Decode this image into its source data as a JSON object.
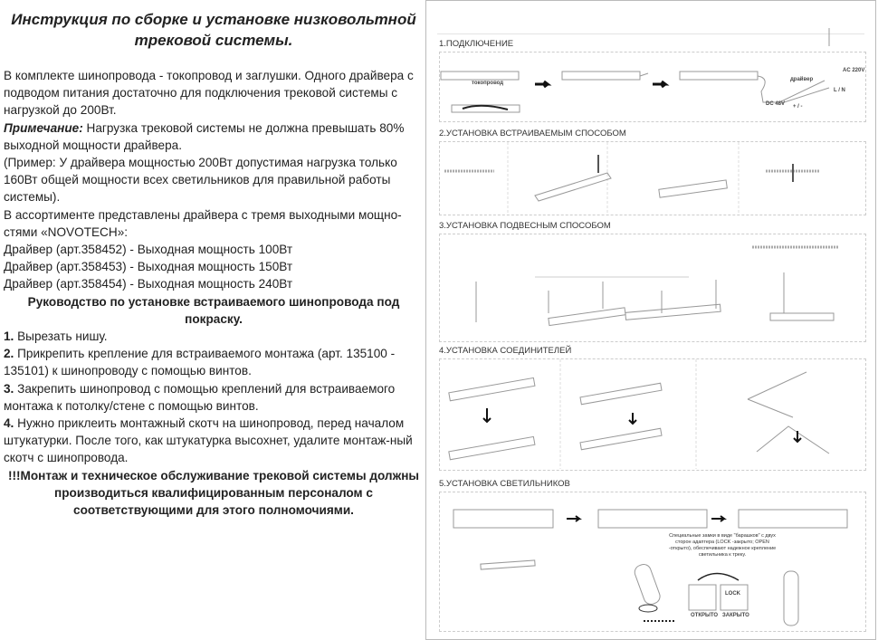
{
  "left": {
    "title": "Инструкция по сборке и установке низковольтной трековой системы.",
    "intro": "В комплекте шинопровода - токопровод и заглушки. Одного драйвера с подводом питания достаточно для подключения трековой системы с нагрузкой до 200Вт.",
    "note_label": "Примечание:",
    "note_text": " Нагрузка трековой системы не должна превышать 80% выходной мощности драйвера.",
    "example": "(Пример: У драйвера мощностью 200Вт допустимая нагрузка только 160Вт общей мощности всех светильников для правильной работы системы).",
    "assortment": "В ассортименте представлены драйвера с тремя выходными мощно-стями «NOVOTECH»:",
    "drivers": [
      "Драйвер (арт.358452) - Выходная мощность 100Вт",
      "Драйвер (арт.358453) - Выходная мощность 150Вт",
      "Драйвер (арт.358454) - Выходная мощность 240Вт"
    ],
    "guide_title": "Руководство по установке встраиваемого шинопровода под покраску.",
    "steps": [
      {
        "num": "1.",
        "text": " Вырезать нишу."
      },
      {
        "num": "2.",
        "text": " Прикрепить крепление для встраиваемого монтажа (арт. 135100 - 135101) к шинопроводу с помощью винтов."
      },
      {
        "num": "3.",
        "text": " Закрепить шинопровод с помощью креплений для встраиваемого монтажа к потолку/стене с помощью винтов."
      },
      {
        "num": "4.",
        "text": " Нужно приклеить монтажный скотч на шинопровод, перед началом штукатурки. После того, как штукатурка высохнет, удалите монтаж-ный скотч с шинопровода."
      }
    ],
    "warning": "!!!Монтаж и техническое обслуживание трековой системы должны производиться квалифицированным персоналом с соответствующими для этого полномочиями."
  },
  "right": {
    "sections": [
      "1.ПОДКЛЮЧЕНИЕ",
      "2.УСТАНОВКА ВСТРАИВАЕМЫМ СПОСОБОМ",
      "3.УСТАНОВКА ПОДВЕСНЫМ СПОСОБОМ",
      "4.УСТАНОВКА СОЕДИНИТЕЛЕЙ",
      "5.УСТАНОВКА СВЕТИЛЬНИКОВ"
    ],
    "labels": {
      "conductor": "токопровод",
      "driver": "драйвер",
      "ac": "AC 220V",
      "ln": "L / N",
      "dc": "DC 48V",
      "pm": "+ / -",
      "lock_caption": "Специальные замки в виде \"барашков\" с двух сторон адаптера (LOCK -закрыто; OPEN -открыто), обеспечивают надежное крепление светильника к треку.",
      "open": "ОТКРЫТО",
      "closed": "ЗАКРЫТО",
      "lock": "LOCK"
    }
  }
}
